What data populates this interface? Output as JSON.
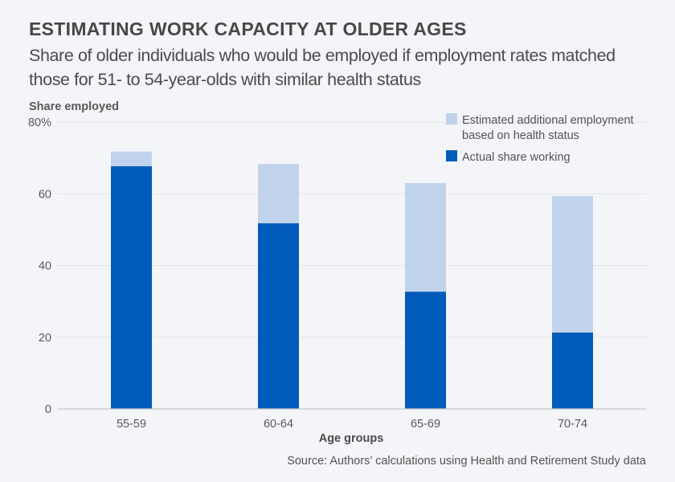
{
  "header": {
    "title": "ESTIMATING WORK CAPACITY AT OLDER AGES",
    "subtitle": "Share of older individuals who would be employed if employment rates matched those for 51- to 54-year-olds with similar health status"
  },
  "colors": {
    "actual": "#005bbb",
    "additional": "#c1d3ec",
    "grid": "#e3e5ea",
    "axis": "#c8c8c8"
  },
  "chart_data": {
    "type": "bar",
    "stacked": true,
    "title": "ESTIMATING WORK CAPACITY AT OLDER AGES",
    "subtitle": "Share of older individuals who would be employed if employment rates matched those for 51- to 54-year-olds with similar health status",
    "xlabel": "Age groups",
    "ylabel": "Share employed",
    "ylim": [
      0,
      80
    ],
    "yticks": [
      0,
      20,
      40,
      60,
      80
    ],
    "ytick_labels": [
      "0",
      "20",
      "40",
      "60",
      "80%"
    ],
    "grid": true,
    "categories": [
      "55-59",
      "60-64",
      "65-69",
      "70-74"
    ],
    "series": [
      {
        "name": "Actual share working",
        "color": "#005bbb",
        "values": [
          67.7,
          51.8,
          32.7,
          21.3
        ]
      },
      {
        "name": "Estimated additional employment based on health status",
        "color": "#c1d3ec",
        "values": [
          4.1,
          16.5,
          30.3,
          38.1
        ]
      }
    ],
    "totals": [
      71.8,
      68.3,
      63.0,
      59.4
    ],
    "legend": {
      "position": "top-right",
      "items": [
        {
          "label_line1": "Estimated additional employment",
          "label_line2": "based on health status",
          "color": "#c1d3ec"
        },
        {
          "label_line1": "Actual share working",
          "label_line2": "",
          "color": "#005bbb"
        }
      ]
    },
    "source": "Source: Authors’ calculations using Health and Retirement Study data"
  }
}
